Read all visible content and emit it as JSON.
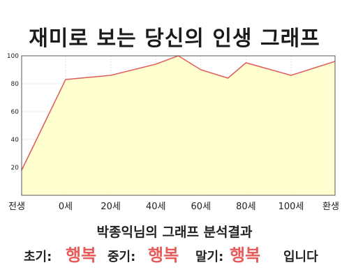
{
  "title": "재미로 보는 당신의 인생 그래프",
  "chart_data": {
    "type": "area",
    "title": "재미로 보는 당신의 인생 그래프",
    "xlabel": "",
    "ylabel": "",
    "x_ticks": [
      "전생",
      "0세",
      "20세",
      "40세",
      "60세",
      "80세",
      "100세",
      "환생"
    ],
    "y_ticks": [
      "20",
      "40",
      "60",
      "80",
      "100"
    ],
    "ylim": [
      0,
      100
    ],
    "grid": true,
    "line_color": "#e06060",
    "fill_color": "#ffffcc",
    "series": [
      {
        "points": [
          [
            "전생",
            18
          ],
          [
            "0세",
            83
          ],
          [
            "20세",
            86
          ],
          [
            "30세",
            90
          ],
          [
            "40세",
            94
          ],
          [
            "50세",
            100
          ],
          [
            "60세",
            90
          ],
          [
            "72세",
            84
          ],
          [
            "80세",
            95
          ],
          [
            "100세",
            86
          ],
          [
            "환생",
            96
          ]
        ]
      }
    ]
  },
  "summary": {
    "heading": "박종익님의 그래프 분석결과",
    "early_label": "초기:",
    "early_value": "행복",
    "mid_label": "중기:",
    "mid_value": "행복",
    "late_label": "말기:",
    "late_value": "행복",
    "ending": "입니다"
  },
  "colors": {
    "highlight": "#e85a5a"
  }
}
